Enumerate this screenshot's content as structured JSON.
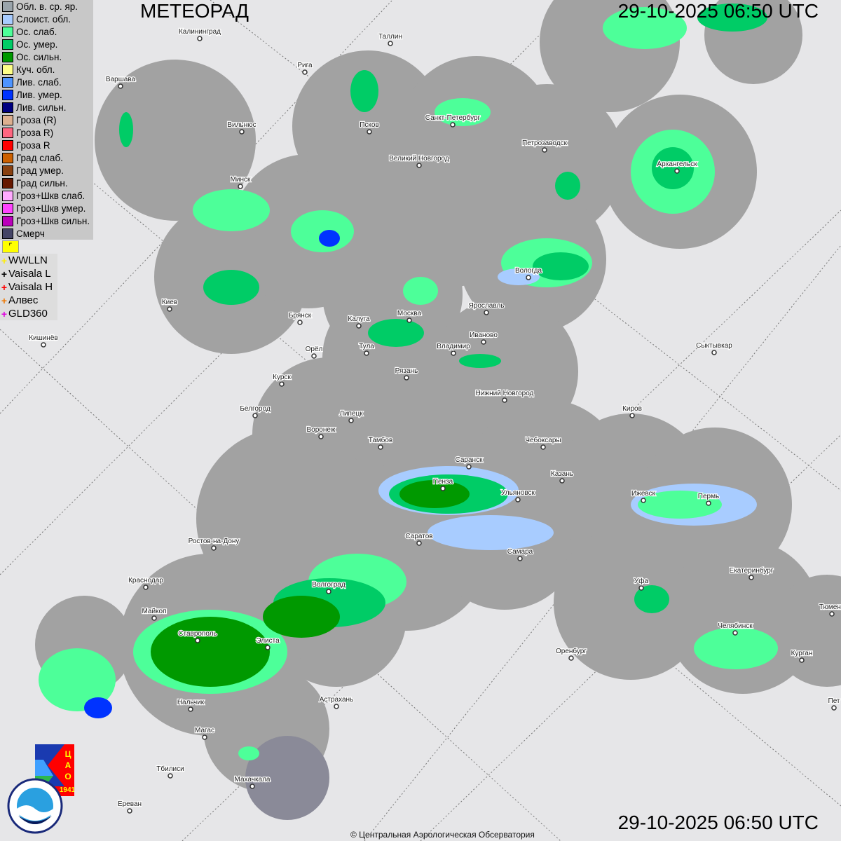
{
  "header": {
    "title": "МЕТЕОРАД",
    "time_top": "29-10-2025  06:50 UTC",
    "time_bottom": "29-10-2025  06:50 UTC"
  },
  "legend": [
    {
      "label": "Обл. в. ср. яр.",
      "color": "#9aa4ab"
    },
    {
      "label": "Слоист. обл.",
      "color": "#a8ccff"
    },
    {
      "label": "Ос. слаб.",
      "color": "#4dff99"
    },
    {
      "label": "Ос. умер.",
      "color": "#00cc66"
    },
    {
      "label": "Ос. сильн.",
      "color": "#009900"
    },
    {
      "label": "Куч. обл.",
      "color": "#ffff88"
    },
    {
      "label": "Лив. слаб.",
      "color": "#4d94ff"
    },
    {
      "label": "Лив. умер.",
      "color": "#0033ff"
    },
    {
      "label": "Лив. сильн.",
      "color": "#000080"
    },
    {
      "label": "Гроза (R)",
      "color": "#ddb090"
    },
    {
      "label": "Гроза R)",
      "color": "#ff6680"
    },
    {
      "label": "Гроза R",
      "color": "#ff0000"
    },
    {
      "label": "Град слаб.",
      "color": "#cc6000"
    },
    {
      "label": "Град умер.",
      "color": "#884010"
    },
    {
      "label": "Град сильн.",
      "color": "#661800"
    },
    {
      "label": "Гроз+Шкв слаб.",
      "color": "#ffaaff"
    },
    {
      "label": "Гроз+Шкв умер.",
      "color": "#ff44ff"
    },
    {
      "label": "Гроз+Шкв сильн.",
      "color": "#bb00bb"
    },
    {
      "label": "Смерч",
      "color": "#444466"
    }
  ],
  "lightning": [
    {
      "label": "WWLLN",
      "color": "#ffee00"
    },
    {
      "label": "Vaisala L",
      "color": "#000000"
    },
    {
      "label": "Vaisala H",
      "color": "#ff0000"
    },
    {
      "label": "Алвес",
      "color": "#ee7700"
    },
    {
      "label": "GLD360",
      "color": "#dd00dd"
    }
  ],
  "cities": [
    "Калининград",
    "Таллин",
    "Рига",
    "Варшава",
    "Вильнюс",
    "Псков",
    "Санкт-Петербург",
    "Великий Новгород",
    "Петрозаводск",
    "Архангельск",
    "Минск",
    "Вологда",
    "Ярославль",
    "Иваново",
    "Москва",
    "Калуга",
    "Тула",
    "Владимир",
    "Брянск",
    "Киев",
    "Кишинёв",
    "Орёл",
    "Рязань",
    "Курск",
    "Нижний Новгород",
    "Сыктывкар",
    "Киров",
    "Белгород",
    "Липецк",
    "Воронеж",
    "Тамбов",
    "Чебоксары",
    "Саранск",
    "Казань",
    "Пенза",
    "Ульяновск",
    "Ижевск",
    "Пермь",
    "Ростов-на-Дону",
    "Саратов",
    "Самара",
    "Краснодар",
    "Уфа",
    "Екатеринбург",
    "Волгоград",
    "Майкоп",
    "Тюмень",
    "Ставрополь",
    "Элиста",
    "Челябинск",
    "Оренбург",
    "Курган",
    "Нальчик",
    "Астрахань",
    "Магас",
    "Тбилиси",
    "Махачкала",
    "Ереван",
    "Пет"
  ],
  "logos": {
    "cao": "ЦАО 1941",
    "roshydromet": "РОСГИДРОМЕТ ROSHYDROMET"
  },
  "copyright": "© Центральная Аэрологическая Обсерватория"
}
